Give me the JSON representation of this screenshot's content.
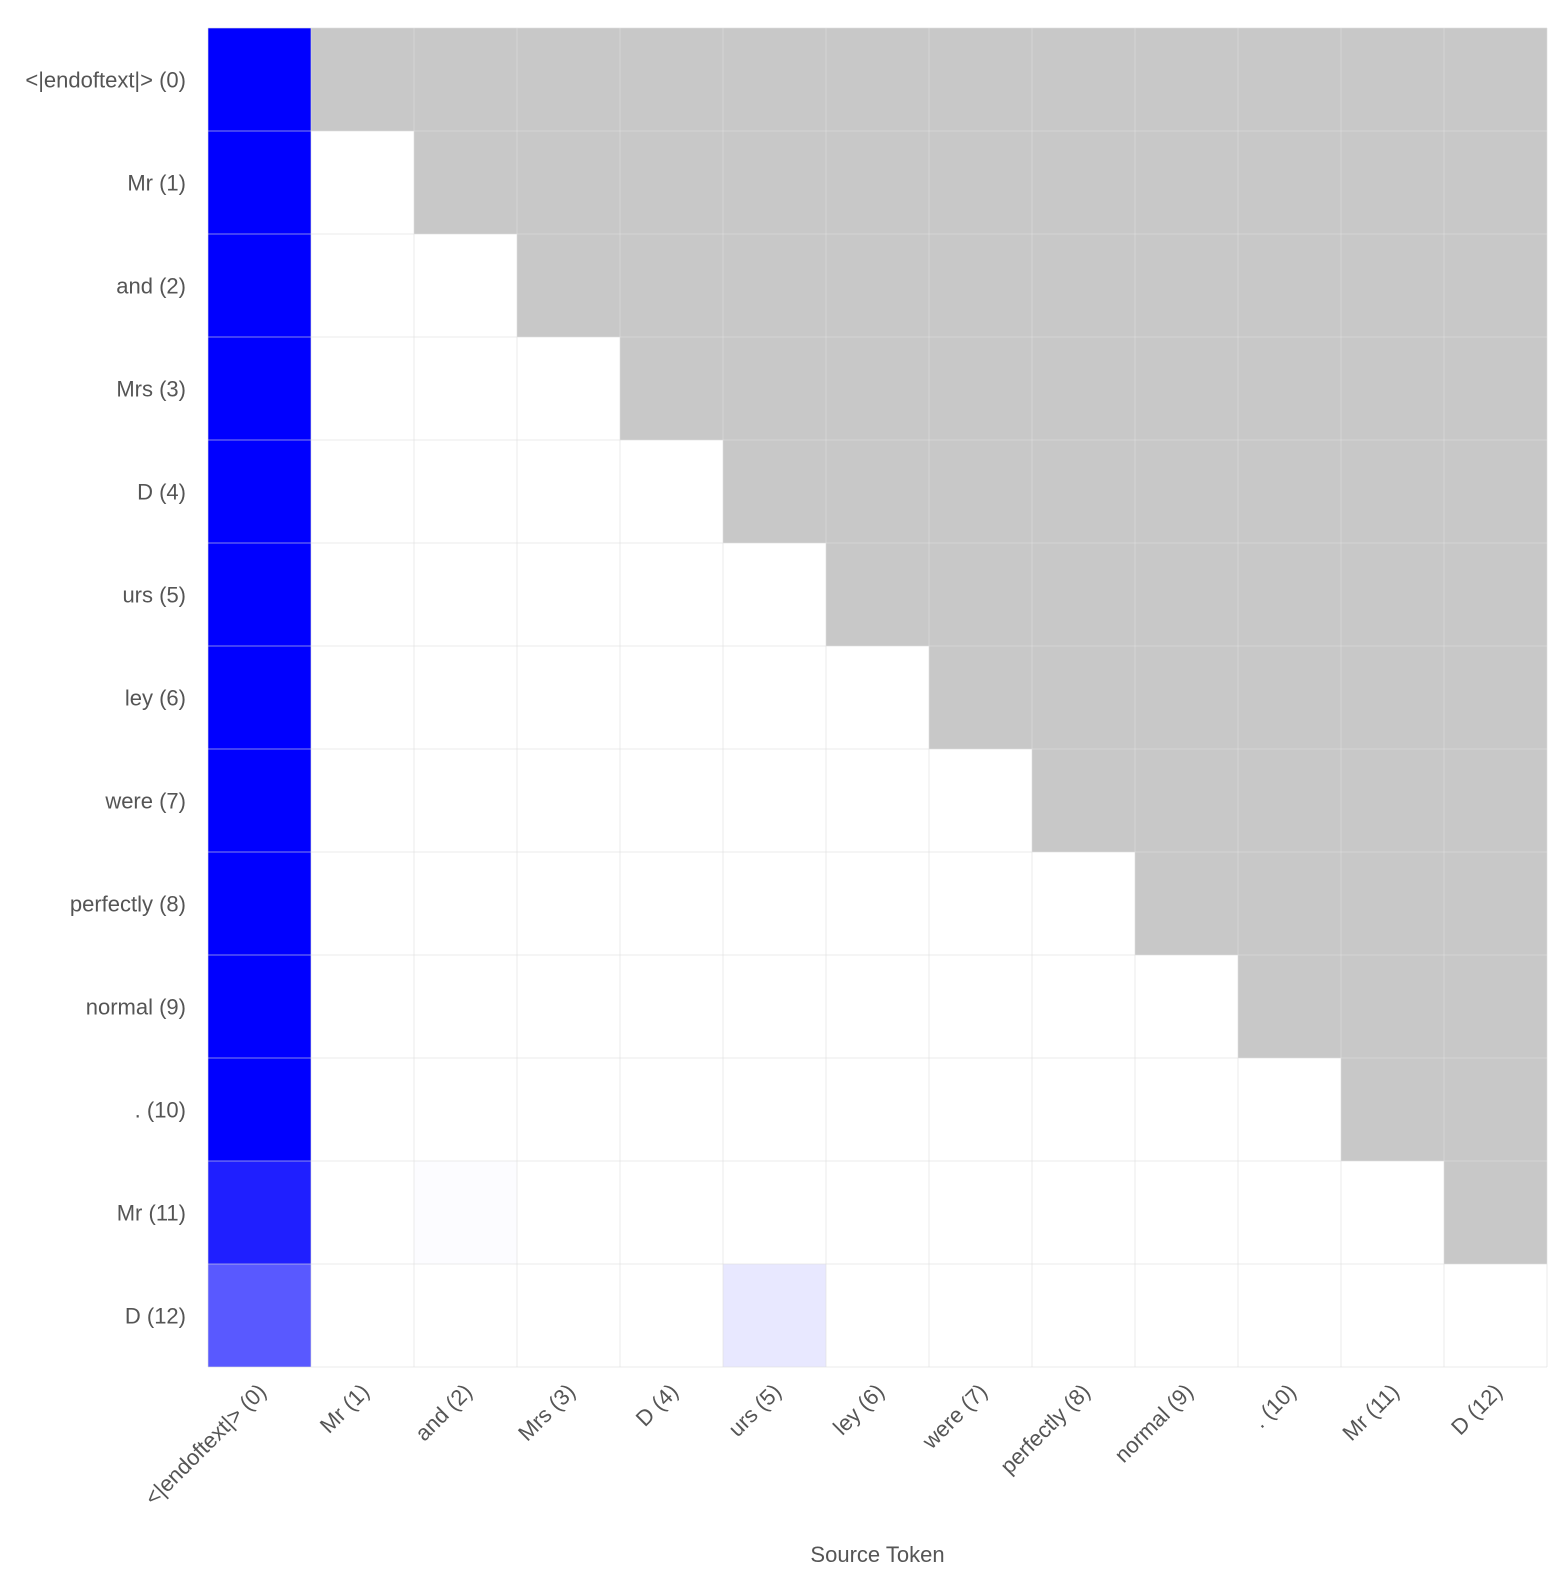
{
  "chart_data": {
    "type": "heatmap",
    "title": "",
    "xlabel": "Source Token",
    "ylabel": "",
    "x_tokens": [
      "<|endoftext|> (0)",
      "Mr (1)",
      "and (2)",
      "Mrs (3)",
      "D (4)",
      "urs (5)",
      "ley (6)",
      "were (7)",
      "perfectly (8)",
      "normal (9)",
      ". (10)",
      "Mr (11)",
      "D (12)"
    ],
    "y_tokens": [
      "<|endoftext|> (0)",
      "Mr (1)",
      "and (2)",
      "Mrs (3)",
      "D (4)",
      "urs (5)",
      "ley (6)",
      "were (7)",
      "perfectly (8)",
      "normal (9)",
      ". (10)",
      "Mr (11)",
      "D (12)"
    ],
    "masked": "upper-triangle",
    "colors": {
      "high": "#0000ff",
      "low": "#ffffff",
      "masked": "#c8c8c8",
      "grid": "#dddddd",
      "text": "#555555"
    },
    "values": [
      [
        1.0
      ],
      [
        1.0,
        0.0
      ],
      [
        1.0,
        0.0,
        0.0
      ],
      [
        1.0,
        0.0,
        0.0,
        0.0
      ],
      [
        1.0,
        0.0,
        0.0,
        0.0,
        0.0
      ],
      [
        1.0,
        0.0,
        0.0,
        0.0,
        0.0,
        0.0
      ],
      [
        1.0,
        0.0,
        0.0,
        0.0,
        0.0,
        0.0,
        0.0
      ],
      [
        1.0,
        0.0,
        0.0,
        0.0,
        0.0,
        0.0,
        0.0,
        0.0
      ],
      [
        1.0,
        0.0,
        0.0,
        0.0,
        0.0,
        0.0,
        0.0,
        0.0,
        0.0
      ],
      [
        1.0,
        0.0,
        0.0,
        0.0,
        0.0,
        0.0,
        0.0,
        0.0,
        0.0,
        0.0
      ],
      [
        1.0,
        0.0,
        0.0,
        0.0,
        0.0,
        0.0,
        0.0,
        0.0,
        0.0,
        0.0,
        0.0
      ],
      [
        0.88,
        0.0,
        0.01,
        0.0,
        0.0,
        0.0,
        0.0,
        0.0,
        0.0,
        0.0,
        0.0,
        0.0
      ],
      [
        0.65,
        0.0,
        0.0,
        0.0,
        0.0,
        0.09,
        0.0,
        0.0,
        0.0,
        0.0,
        0.0,
        0.0,
        0.0
      ]
    ]
  }
}
